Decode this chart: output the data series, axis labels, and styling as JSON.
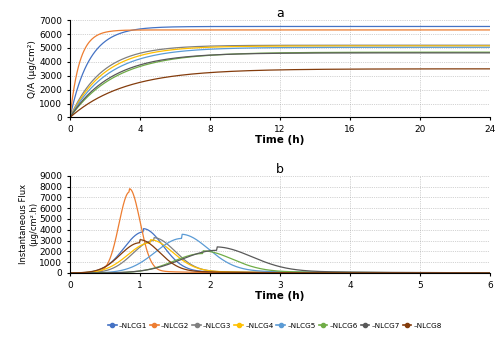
{
  "title_a": "a",
  "title_b": "b",
  "xlabel_a": "Time (h)",
  "ylabel_a": "Q/A (μg/cm²)",
  "xlabel_b": "Time (h)",
  "ylabel_b": "Instantaneous Flux\n(μg/cm².h)",
  "legend_labels": [
    "NLCG1",
    "NLCG2",
    "NLCG3",
    "NLCG4",
    "NLCG5",
    "NLCG6",
    "NLCG7",
    "NLCG8"
  ],
  "colors": [
    "#4472C4",
    "#ED7D31",
    "#808080",
    "#FFC000",
    "#5B9BD5",
    "#70AD47",
    "#595959",
    "#843C0C"
  ],
  "ylim_a": [
    0,
    7000
  ],
  "xlim_a": [
    0,
    24
  ],
  "yticks_a": [
    0,
    1000,
    2000,
    3000,
    4000,
    5000,
    6000,
    7000
  ],
  "xticks_a": [
    0,
    4,
    8,
    12,
    16,
    20,
    24
  ],
  "ylim_b": [
    0,
    9000
  ],
  "xlim_b": [
    0,
    6
  ],
  "yticks_b": [
    0,
    1000,
    2000,
    3000,
    4000,
    5000,
    6000,
    7000,
    8000,
    9000
  ],
  "xticks_b": [
    0,
    1,
    2,
    3,
    4,
    5,
    6
  ],
  "sat_vals_a": [
    6550,
    6300,
    5200,
    5150,
    5050,
    4700,
    4650,
    3500
  ],
  "k_vals_a": [
    0.9,
    1.8,
    0.55,
    0.5,
    0.45,
    0.38,
    0.42,
    0.32
  ],
  "peaks_b": [
    3800,
    7500,
    3000,
    2800,
    3200,
    1800,
    2100,
    2800
  ],
  "peak_ts_b": [
    1.05,
    0.85,
    1.2,
    1.15,
    1.6,
    1.9,
    2.1,
    1.0
  ],
  "widths_b": [
    0.28,
    0.15,
    0.3,
    0.32,
    0.38,
    0.42,
    0.5,
    0.28
  ],
  "tail_scales_b": [
    0.08,
    0.04,
    0.09,
    0.1,
    0.12,
    0.14,
    0.15,
    0.1
  ],
  "tail_decays_b": [
    0.8,
    0.6,
    0.9,
    1.0,
    1.1,
    1.3,
    1.4,
    0.9
  ]
}
